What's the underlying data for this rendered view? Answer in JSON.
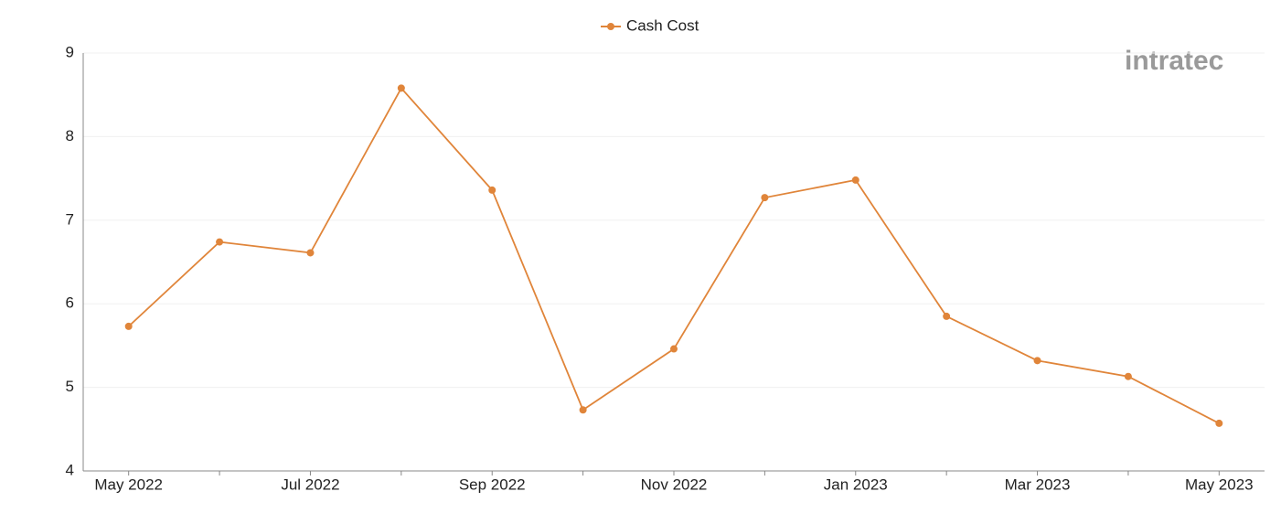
{
  "chart_data": {
    "type": "line",
    "legend": "top-center",
    "watermark": "intratec",
    "categories": [
      "May 2022",
      null,
      "Jul 2022",
      null,
      "Sep 2022",
      null,
      "Nov 2022",
      null,
      "Jan 2023",
      null,
      "Mar 2023",
      null,
      "May 2023"
    ],
    "series": [
      {
        "name": "Cash Cost",
        "color": "#e0853a",
        "values": [
          5.73,
          6.74,
          6.61,
          8.58,
          7.36,
          4.73,
          5.46,
          7.27,
          7.48,
          5.85,
          5.32,
          5.13,
          4.57
        ]
      }
    ],
    "ylim": [
      4,
      9
    ],
    "yticks": [
      4,
      5,
      6,
      7,
      8,
      9
    ],
    "grid": true
  }
}
